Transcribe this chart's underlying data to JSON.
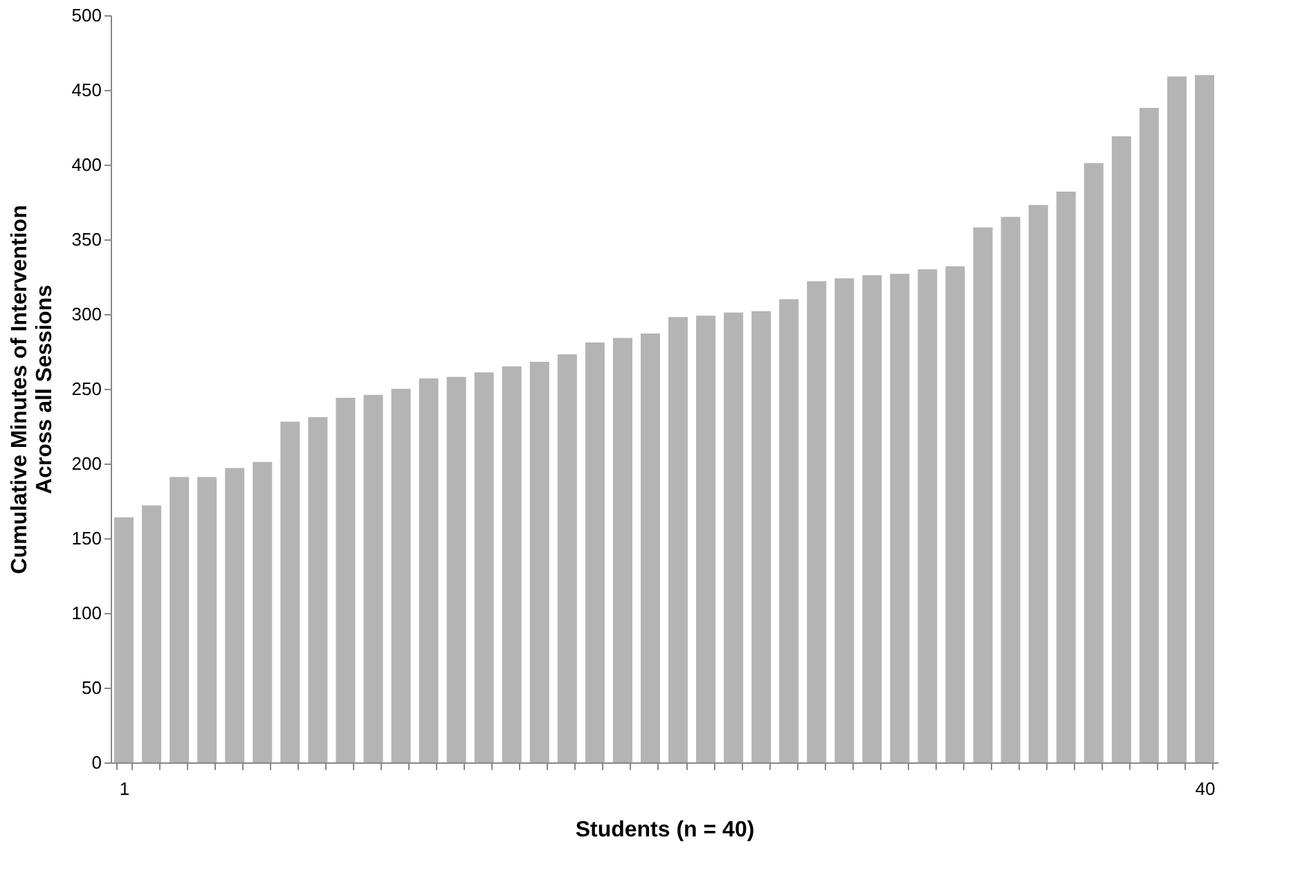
{
  "chart_data": {
    "type": "bar",
    "xlabel": "Students (n = 40)",
    "ylabel": "Cumulative Minutes of Intervention\nAcross all Sessions",
    "categories": [
      "1",
      null,
      null,
      null,
      null,
      null,
      null,
      null,
      null,
      null,
      null,
      null,
      null,
      null,
      null,
      null,
      null,
      null,
      null,
      null,
      null,
      null,
      null,
      null,
      null,
      null,
      null,
      null,
      null,
      null,
      null,
      null,
      null,
      null,
      null,
      null,
      null,
      null,
      null,
      "40"
    ],
    "values": [
      164,
      172,
      191,
      191,
      197,
      201,
      228,
      231,
      244,
      246,
      250,
      257,
      258,
      261,
      265,
      268,
      273,
      281,
      284,
      287,
      298,
      299,
      301,
      302,
      310,
      322,
      324,
      326,
      327,
      330,
      332,
      358,
      365,
      373,
      382,
      401,
      419,
      438,
      459,
      460
    ],
    "color": "#b4b4b4",
    "ylim": [
      0,
      500
    ],
    "yticks": [
      0,
      50,
      100,
      150,
      200,
      250,
      300,
      350,
      400,
      450,
      500
    ],
    "grid": false
  }
}
